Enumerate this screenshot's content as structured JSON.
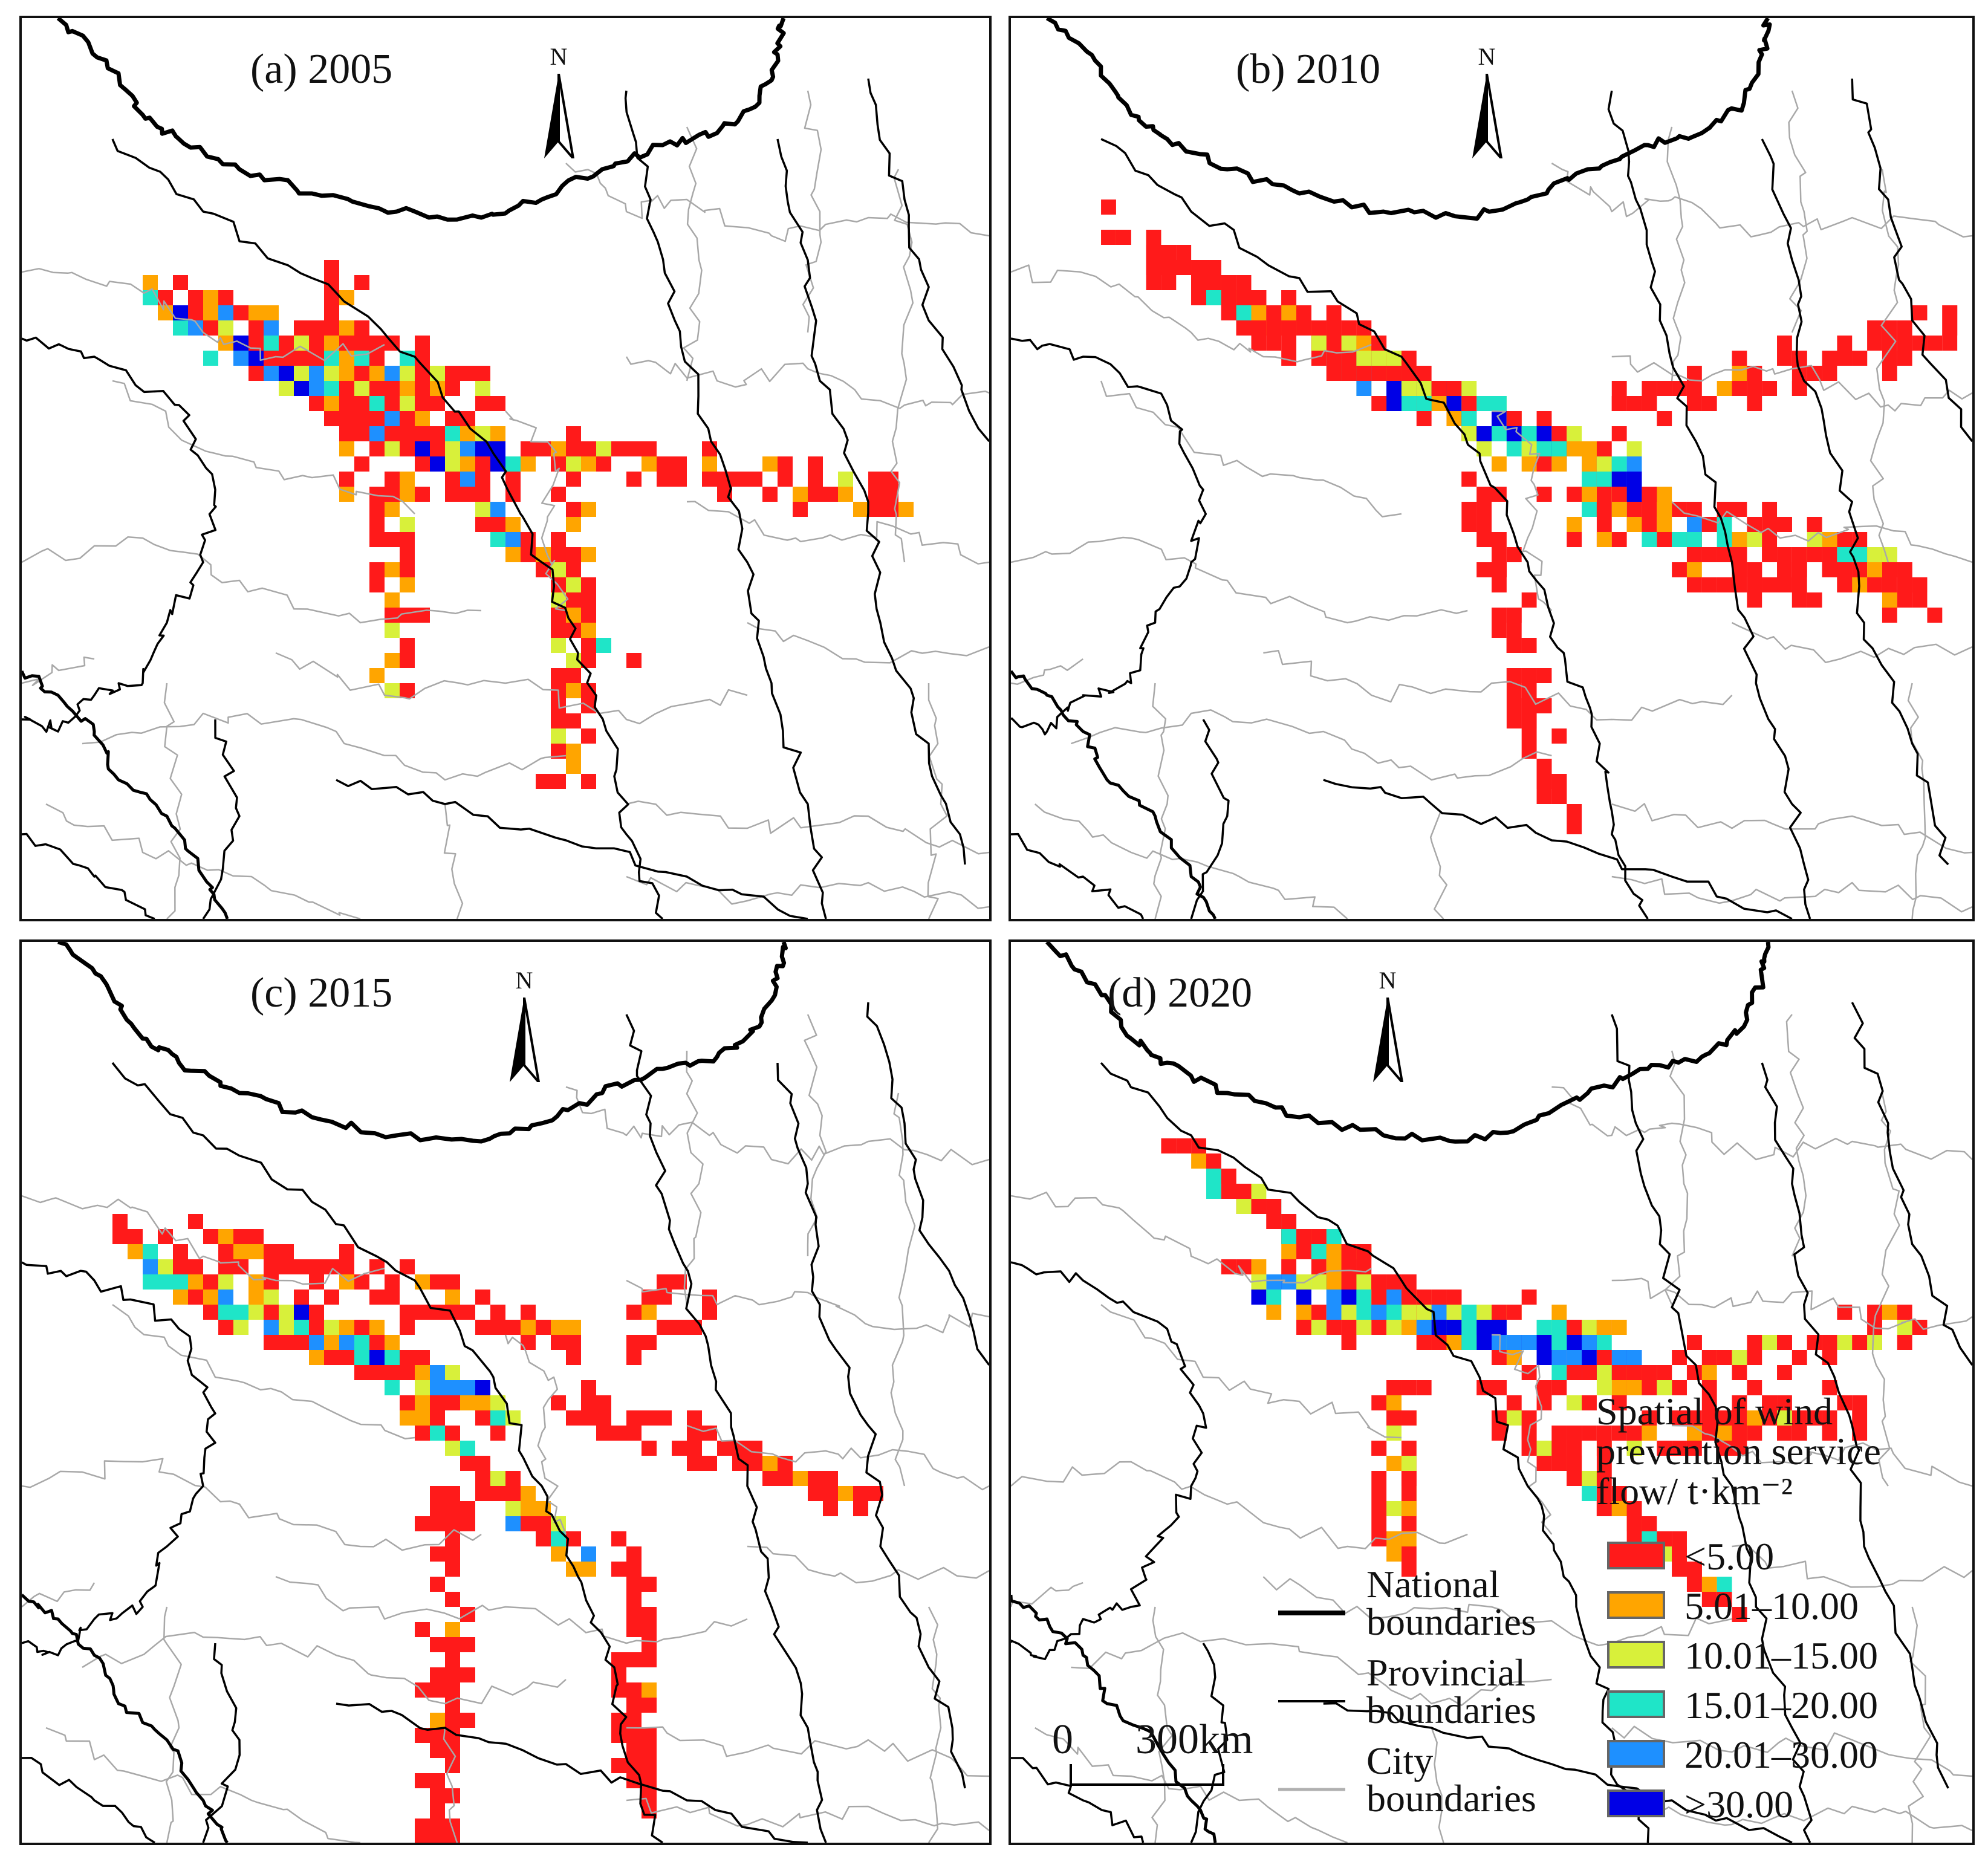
{
  "panels": [
    {
      "id": "a",
      "title": "(a) 2005"
    },
    {
      "id": "b",
      "title": "(b) 2010"
    },
    {
      "id": "c",
      "title": "(c) 2015"
    },
    {
      "id": "d",
      "title": "(d) 2020"
    }
  ],
  "north_arrow": {
    "letter": "N"
  },
  "legend": {
    "title_lines": [
      "Spatial of wind",
      "prevention service",
      "flow/ t·km⁻²"
    ],
    "classes": [
      {
        "label": "<5.00",
        "color": "#ff1a1a"
      },
      {
        "label": "5.01–10.00",
        "color": "#ffa500"
      },
      {
        "label": "10.01–15.00",
        "color": "#d8f03a"
      },
      {
        "label": "15.01–20.00",
        "color": "#1fe5c8"
      },
      {
        "label": "20.01–30.00",
        "color": "#1e90ff"
      },
      {
        "label": ">30.00",
        "color": "#0000e6"
      }
    ]
  },
  "boundary_legend": [
    {
      "lines": [
        "National",
        "boundaries"
      ],
      "style": "national"
    },
    {
      "lines": [
        "Provincial",
        "boundaries"
      ],
      "style": "provincial"
    },
    {
      "lines": [
        "City",
        "boundaries"
      ],
      "style": "city"
    }
  ],
  "scale_bar": {
    "zero": "0",
    "distance": "300km"
  },
  "colors": {
    "national": "#000000",
    "provincial": "#000000",
    "city": "#a8a8a8"
  }
}
